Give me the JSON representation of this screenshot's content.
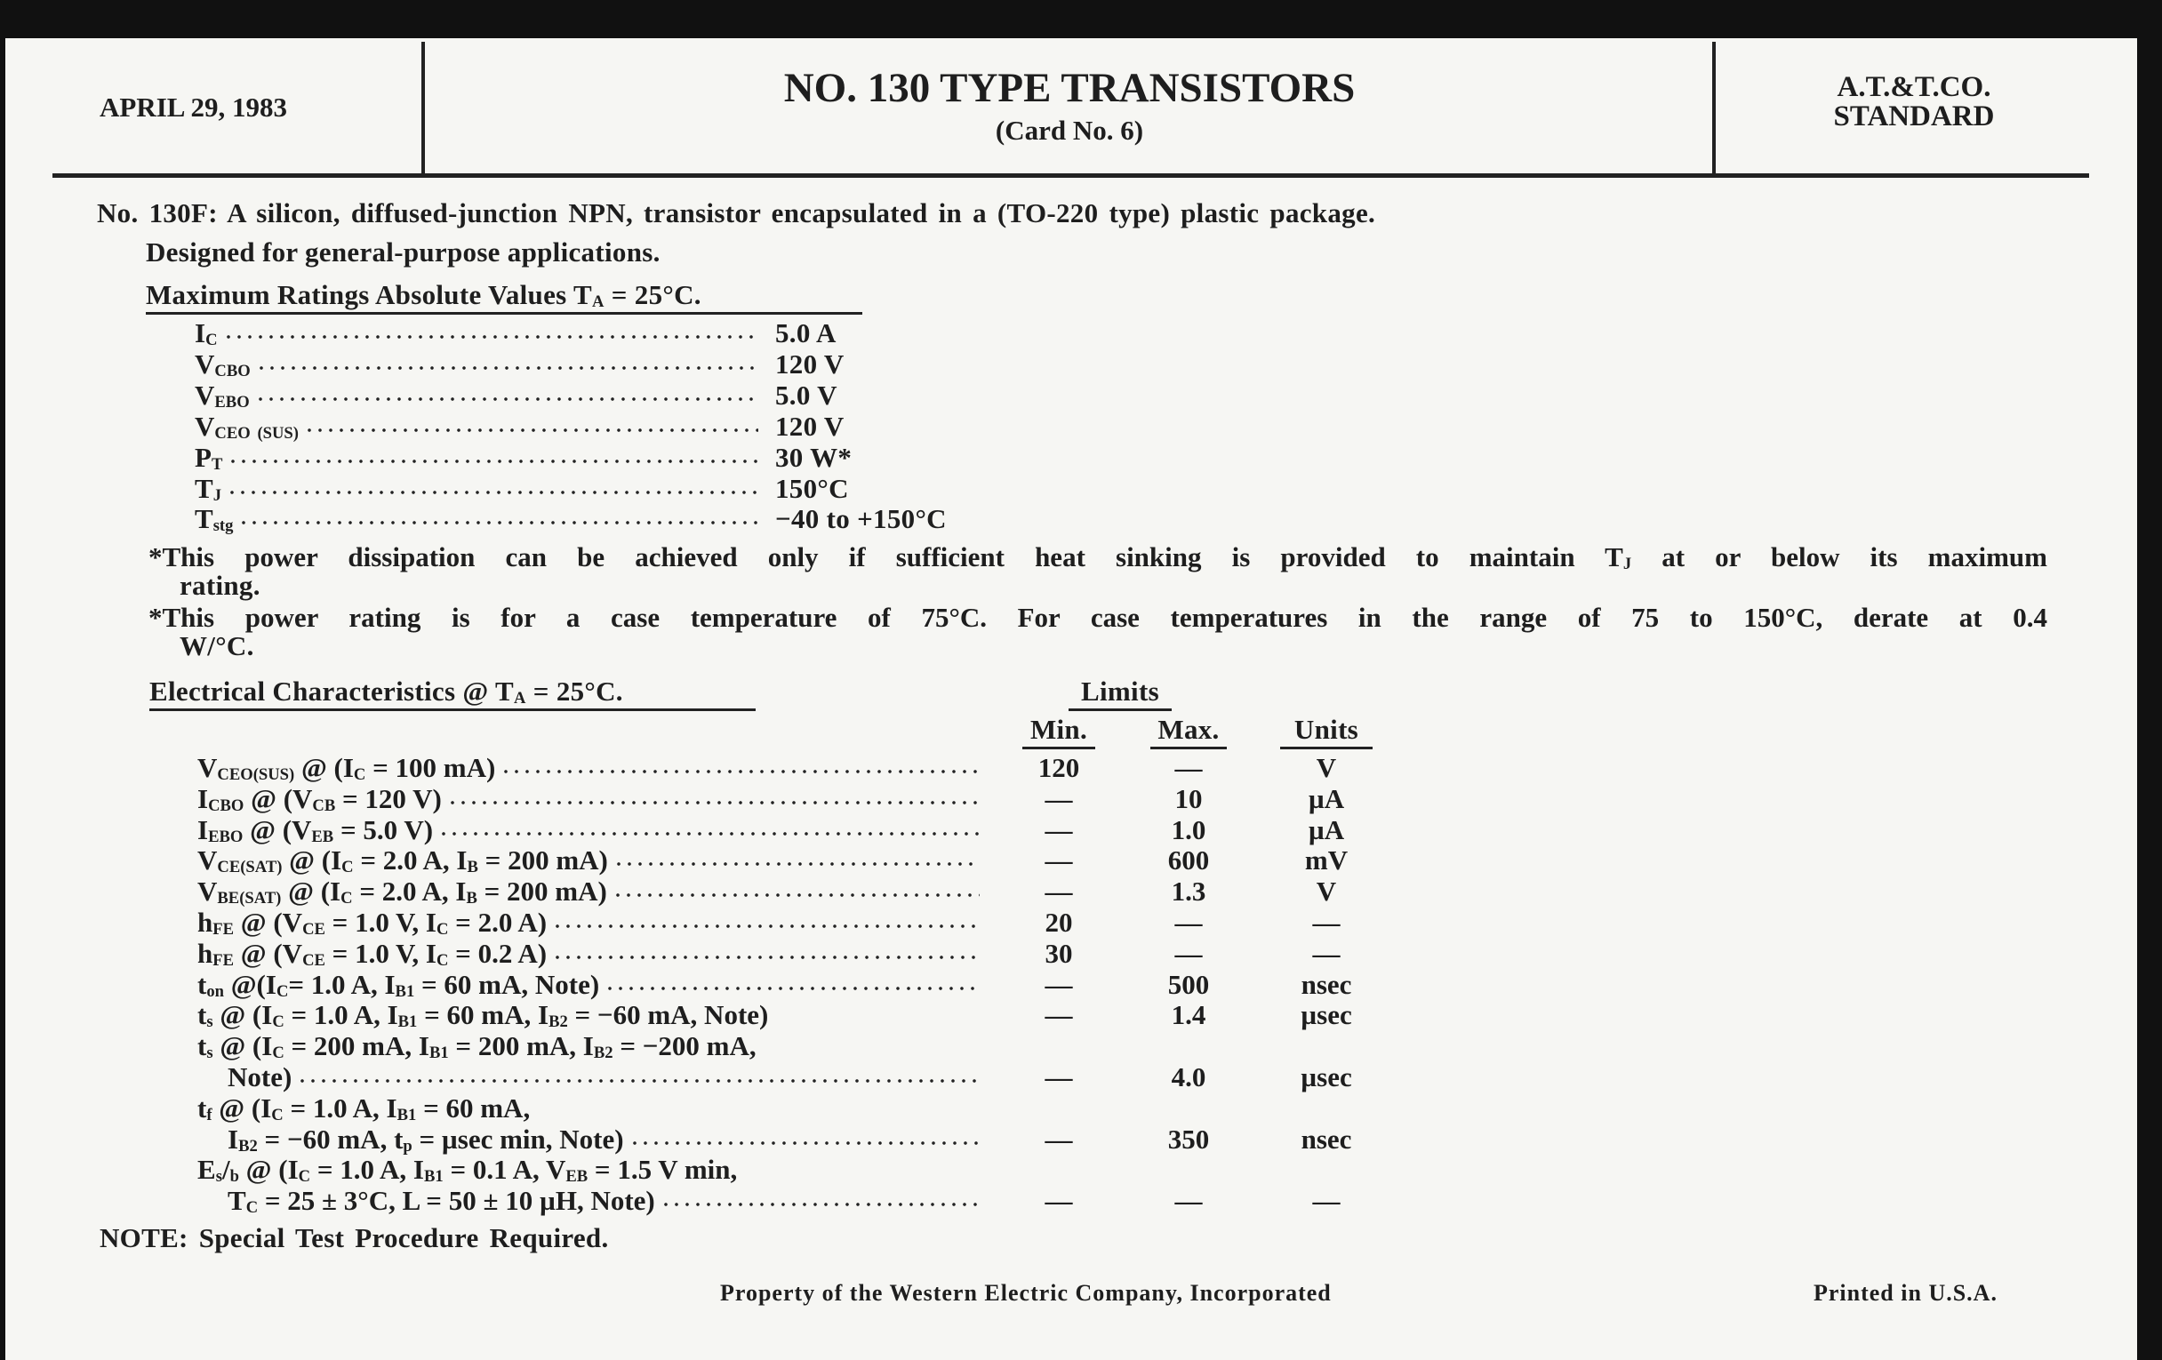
{
  "header": {
    "date": "APRIL 29, 1983",
    "title": "NO. 130 TYPE TRANSISTORS",
    "subtitle": "(Card No. 6)",
    "standard_line1": "A.T.&T.CO.",
    "standard_line2": "STANDARD"
  },
  "intro": {
    "line1": "No. 130F: A silicon, diffused-junction NPN, transistor encapsulated in a (TO-220 type) plastic package.",
    "line2": "Designed for general-purpose applications."
  },
  "max_ratings": {
    "heading": "Maximum Ratings Absolute Values T_{A} = 25°C.",
    "rows": [
      {
        "label": "I_{C}",
        "value": "5.0 A"
      },
      {
        "label": "V_{CBO}",
        "value": "120 V"
      },
      {
        "label": "V_{EBO}",
        "value": "5.0 V"
      },
      {
        "label": "V_{CEO} _{(SUS)}",
        "value": "120 V"
      },
      {
        "label": "P_{T}",
        "value": "30 W*"
      },
      {
        "label": "T_{J}",
        "value": "150°C"
      },
      {
        "label": "T_{stg}",
        "value": "−40 to +150°C"
      }
    ]
  },
  "footnotes": [
    {
      "line1": "*This power dissipation can be achieved only if sufficient heat sinking is provided to maintain T_{J} at or below its maximum",
      "line2": "rating."
    },
    {
      "line1": "*This power rating is for a case temperature of 75°C. For case temperatures in the range of 75 to 150°C, derate at 0.4",
      "line2": "W/°C."
    }
  ],
  "electrical": {
    "heading": "Electrical Characteristics @ T_{A} = 25°C.",
    "limits_label": "Limits",
    "columns": {
      "min": "Min.",
      "max": "Max.",
      "units": "Units"
    },
    "rows": [
      {
        "lines": [
          "V_{CEO}_{(SUS)} @ (I_{C} = 100 mA)"
        ],
        "min": "120",
        "max": "—",
        "units": "V"
      },
      {
        "lines": [
          "I_{CBO} @ (V_{CB} = 120 V)"
        ],
        "min": "—",
        "max": "10",
        "units": "µA"
      },
      {
        "lines": [
          "I_{EBO} @ (V_{EB} = 5.0 V)"
        ],
        "min": "—",
        "max": "1.0",
        "units": "µA"
      },
      {
        "lines": [
          "V_{CE}_{(SAT)} @ (I_{C} = 2.0 A, I_{B} = 200 mA)"
        ],
        "min": "—",
        "max": "600",
        "units": "mV"
      },
      {
        "lines": [
          "V_{BE}_{(SAT)} @ (I_{C} = 2.0 A, I_{B} = 200 mA)"
        ],
        "min": "—",
        "max": "1.3",
        "units": "V"
      },
      {
        "lines": [
          "h_{FE} @ (V_{CE} = 1.0 V, I_{C} = 2.0 A)"
        ],
        "min": "20",
        "max": "—",
        "units": "—"
      },
      {
        "lines": [
          "h_{FE} @ (V_{CE} = 1.0 V, I_{C} = 0.2 A)"
        ],
        "min": "30",
        "max": "—",
        "units": "—"
      },
      {
        "lines": [
          "t_{on} @(I_{C}= 1.0 A, I_{B1} = 60 mA, Note)"
        ],
        "min": "—",
        "max": "500",
        "units": "nsec"
      },
      {
        "lines": [
          "t_{s} @ (I_{C} = 1.0 A, I_{B1} = 60 mA, I_{B2} = −60 mA, Note)"
        ],
        "min": "—",
        "max": "1.4",
        "units": "µsec"
      },
      {
        "lines": [
          "t_{s} @ (I_{C} = 200 mA, I_{B1} = 200 mA, I_{B2} = −200 mA,",
          "Note)"
        ],
        "min": "—",
        "max": "4.0",
        "units": "µsec"
      },
      {
        "lines": [
          "t_{f} @ (I_{C} = 1.0 A, I_{B1} = 60 mA,",
          "I_{B2} = −60 mA, t_{p} = µsec min, Note)"
        ],
        "min": "—",
        "max": "350",
        "units": "nsec"
      },
      {
        "lines": [
          "E_{s}/_{b} @ (I_{C} = 1.0 A, I_{B1} = 0.1 A, V_{EB} = 1.5 V min,",
          "T_{C} = 25 ± 3°C, L = 50 ± 10 µH, Note)"
        ],
        "min": "—",
        "max": "—",
        "units": "—"
      }
    ]
  },
  "note": "NOTE: Special Test Procedure Required.",
  "footer": {
    "property": "Property of the Western Electric Company, Incorporated",
    "printed": "Printed in U.S.A."
  }
}
